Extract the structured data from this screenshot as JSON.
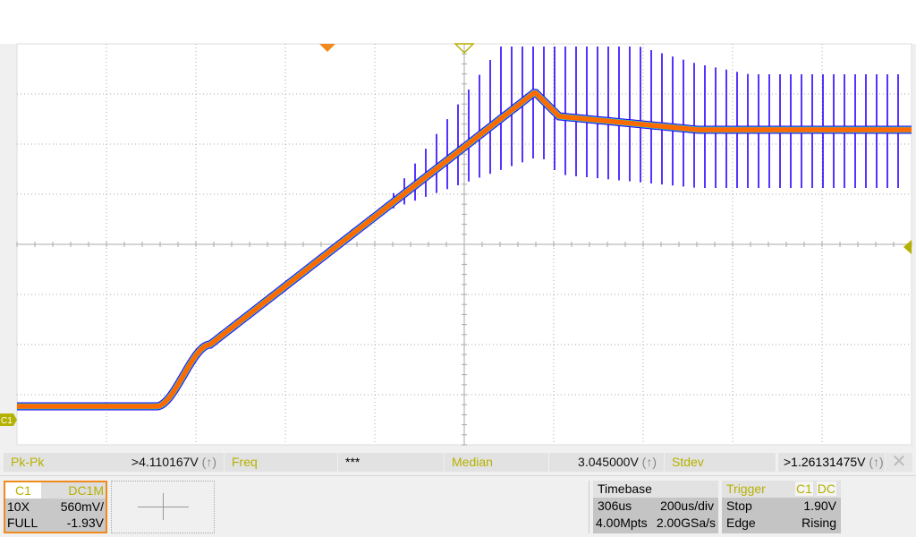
{
  "markers": {
    "channel_label": "C1"
  },
  "measurements": [
    {
      "label": "Pk-Pk",
      "value": ">4.110167V",
      "flag": "(↑)"
    },
    {
      "label": "Freq",
      "value": "***",
      "flag": ""
    },
    {
      "label": "Median",
      "value": "3.045000V",
      "flag": "(↑)"
    },
    {
      "label": "Stdev",
      "value": ">1.26131475V",
      "flag": "(↑)"
    }
  ],
  "channel": {
    "name": "C1",
    "coupling": "DC1M",
    "probe": "10X",
    "scale": "560mV/",
    "bandwidth": "FULL",
    "offset": "-1.93V"
  },
  "timebase": {
    "title": "Timebase",
    "delay": "306us",
    "scale": "200us/div",
    "memory": "4.00Mpts",
    "sample_rate": "2.00GSa/s"
  },
  "trigger": {
    "title": "Trigger",
    "source": "C1",
    "coupling": "DC",
    "mode": "Stop",
    "level": "1.90V",
    "type": "Edge",
    "slope": "Rising"
  },
  "colors": {
    "trace": "#ff6a00",
    "trace_glitch": "#2a00ff",
    "trigger_marker": "#b5b100",
    "position_marker": "#f08a1c",
    "channel_accent": "#b5b100"
  }
}
